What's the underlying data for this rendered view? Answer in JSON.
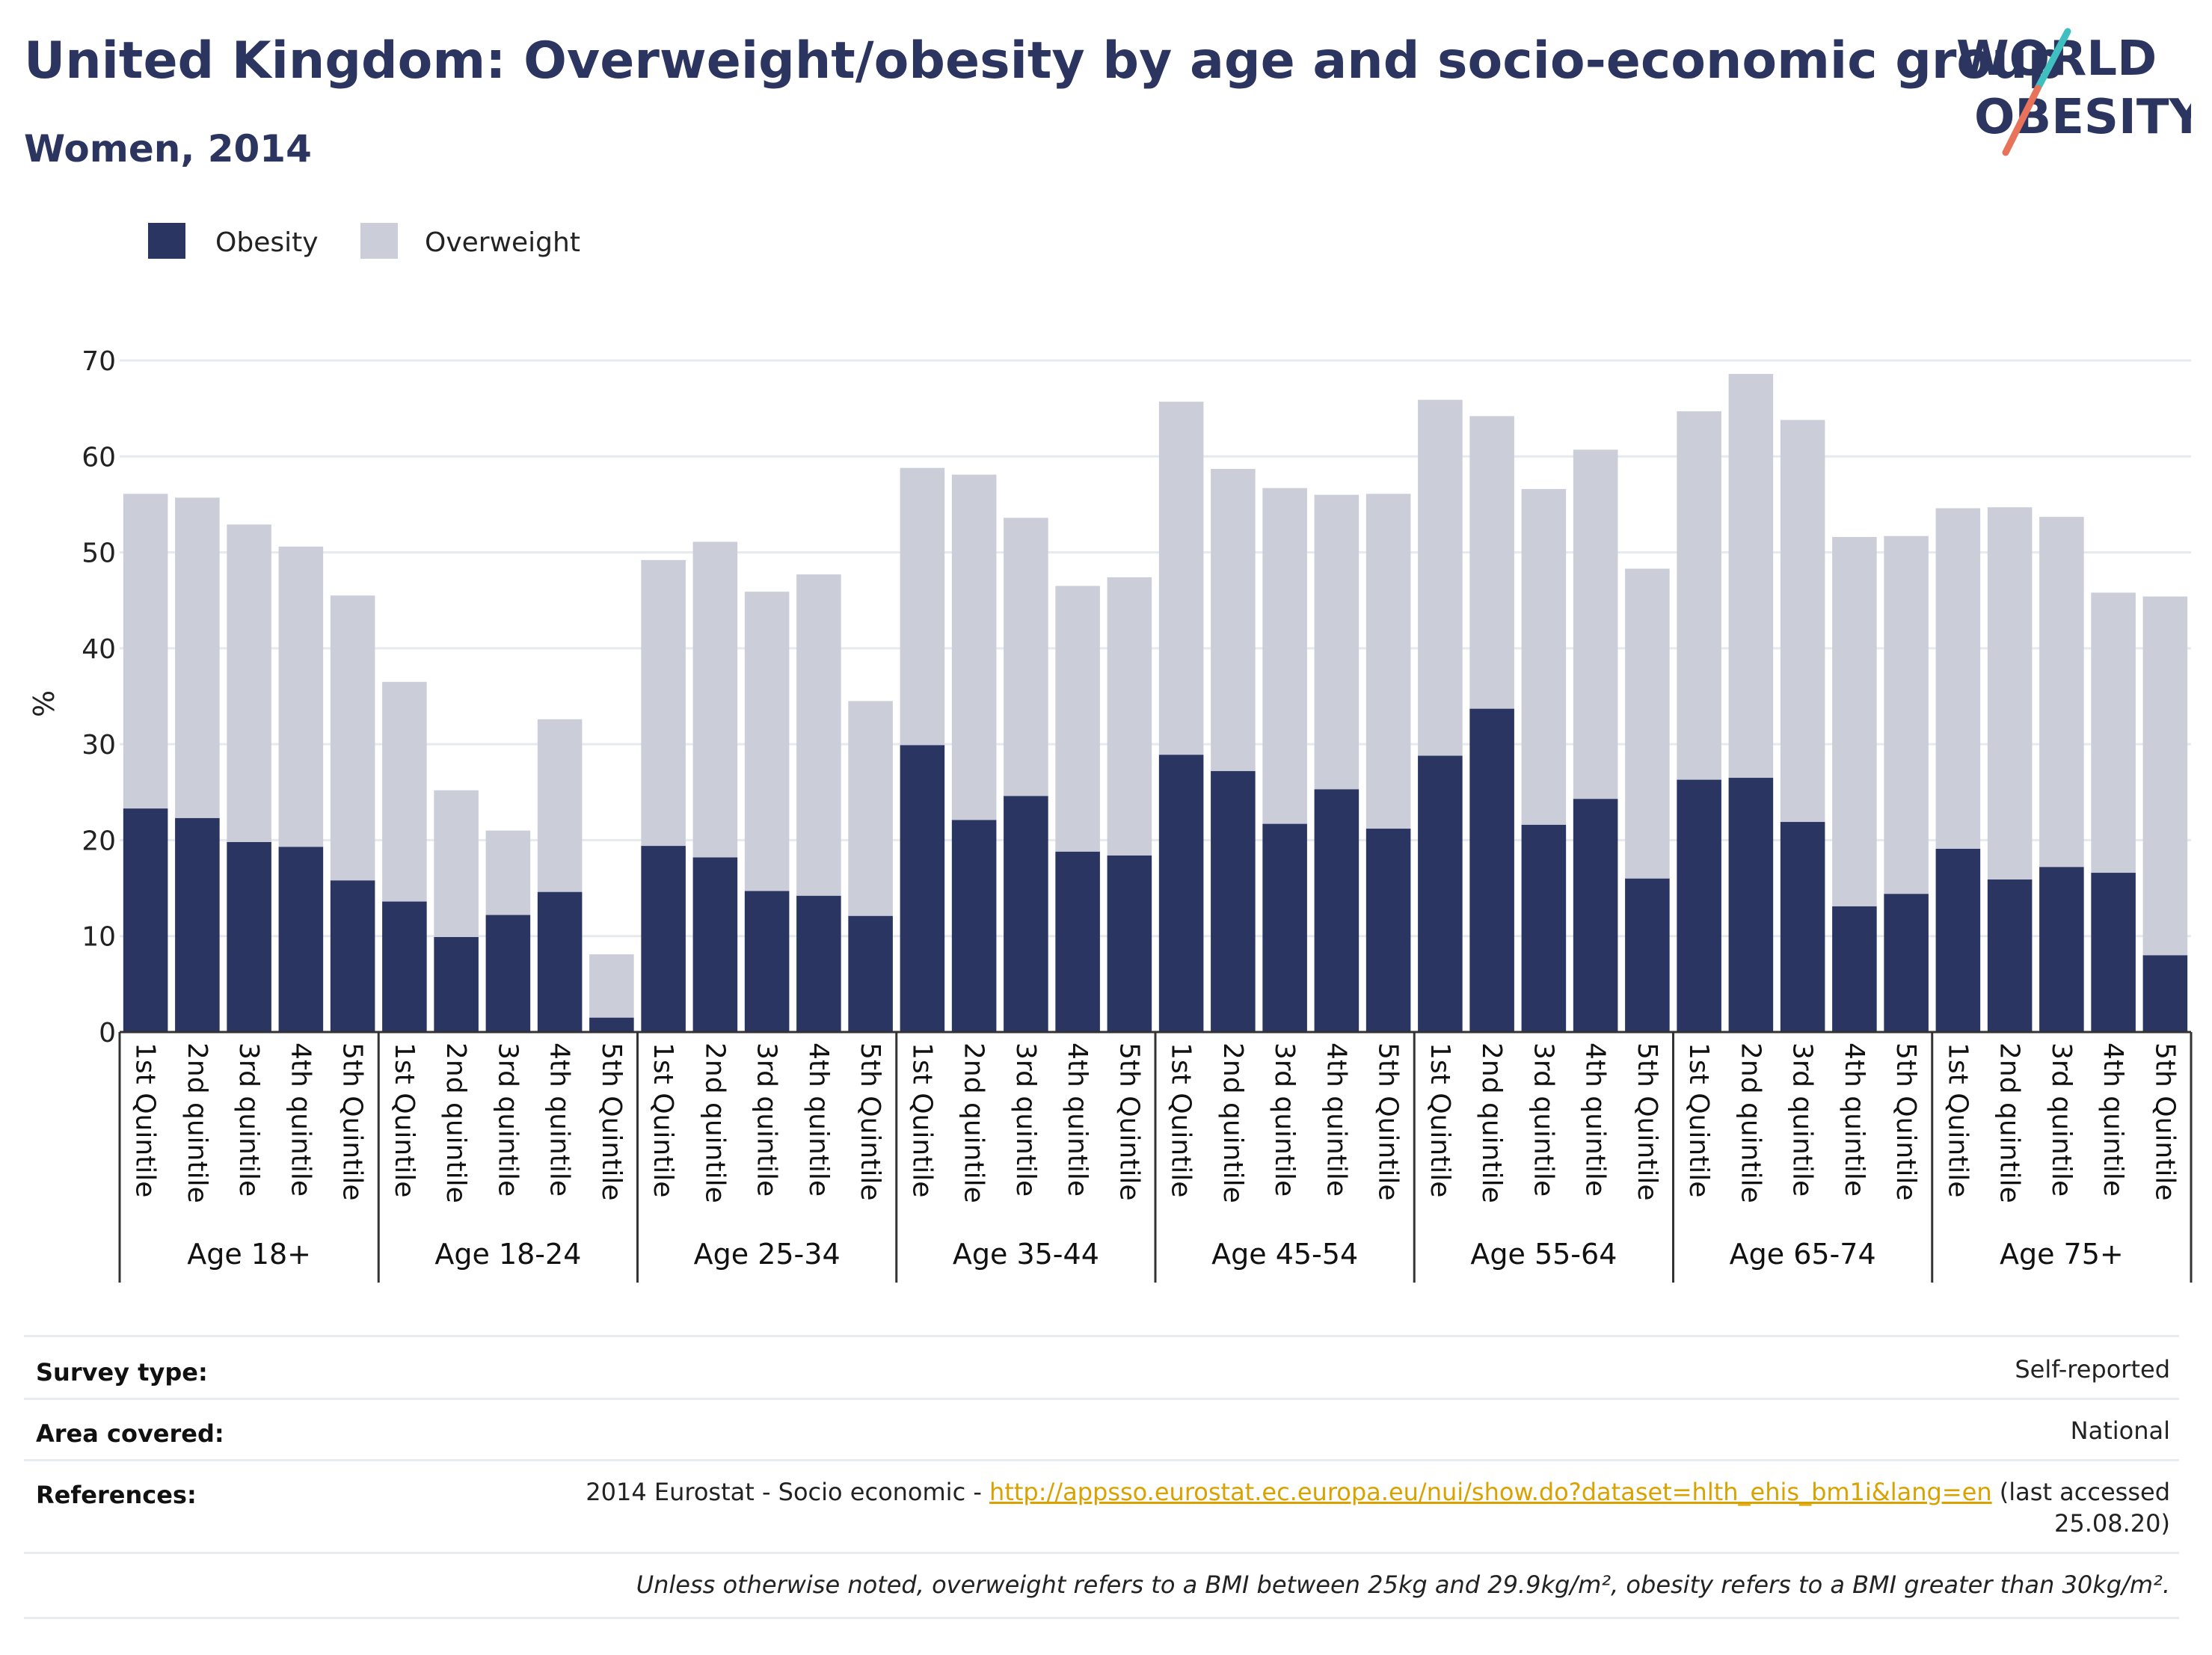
{
  "header": {
    "title": "United Kingdom: Overweight/obesity by age and socio-economic group",
    "subtitle": "Women, 2014",
    "logo_line1": "WORLD",
    "logo_line2": "OBESITY"
  },
  "colors": {
    "obesity": "#2b3562",
    "overweight": "#cbcdd9",
    "title": "#2b3560",
    "logo_slash_teal": "#3fbfbf",
    "logo_slash_coral": "#e8735a",
    "link": "#d9a200"
  },
  "chart_data": {
    "type": "bar",
    "stacked": true,
    "ylabel": "%",
    "ylim": [
      0,
      70
    ],
    "yticks": [
      0,
      10,
      20,
      30,
      40,
      50,
      60,
      70
    ],
    "grid": true,
    "legend_position": "top-left",
    "groups": [
      "Age 18+",
      "Age 18-24",
      "Age 25-34",
      "Age 35-44",
      "Age 45-54",
      "Age 55-64",
      "Age 65-74",
      "Age 75+"
    ],
    "categories": [
      "1st Quintile",
      "2nd quintile",
      "3rd quintile",
      "4th quintile",
      "5th Quintile"
    ],
    "series": [
      {
        "name": "Obesity",
        "values": [
          [
            23.3,
            22.3,
            19.8,
            19.3,
            15.8
          ],
          [
            13.6,
            9.9,
            12.2,
            14.6,
            1.5
          ],
          [
            19.4,
            18.2,
            14.7,
            14.2,
            12.1
          ],
          [
            29.9,
            22.1,
            24.6,
            18.8,
            18.4
          ],
          [
            28.9,
            27.2,
            21.7,
            25.3,
            21.2
          ],
          [
            28.8,
            33.7,
            21.6,
            24.3,
            16.0
          ],
          [
            26.3,
            26.5,
            21.9,
            13.1,
            14.4
          ],
          [
            19.1,
            15.9,
            17.2,
            16.6,
            8.0
          ]
        ]
      },
      {
        "name": "Overweight",
        "values": [
          [
            32.8,
            33.4,
            33.1,
            31.3,
            29.7
          ],
          [
            22.9,
            15.3,
            8.8,
            18.0,
            6.6
          ],
          [
            29.8,
            32.9,
            31.2,
            33.5,
            22.4
          ],
          [
            28.9,
            36.0,
            29.0,
            27.7,
            29.0
          ],
          [
            36.8,
            31.5,
            35.0,
            30.7,
            34.9
          ],
          [
            37.1,
            30.5,
            35.0,
            36.4,
            32.3
          ],
          [
            38.4,
            42.1,
            41.9,
            38.5,
            37.3
          ],
          [
            35.5,
            38.8,
            36.5,
            29.2,
            37.4
          ]
        ]
      }
    ]
  },
  "info": {
    "survey_type_label": "Survey type:",
    "survey_type_value": "Self-reported",
    "area_label": "Area covered:",
    "area_value": "National",
    "references_label": "References:",
    "references_prefix": "2014 Eurostat - Socio economic - ",
    "references_link": "http://appsso.eurostat.ec.europa.eu/nui/show.do?dataset=hlth_ehis_bm1i&lang=en",
    "references_suffix": " (last accessed",
    "references_suffix2": "25.08.20)",
    "note": "Unless otherwise noted, overweight refers to a BMI between 25kg and 29.9kg/m², obesity refers to a BMI greater than 30kg/m²."
  }
}
